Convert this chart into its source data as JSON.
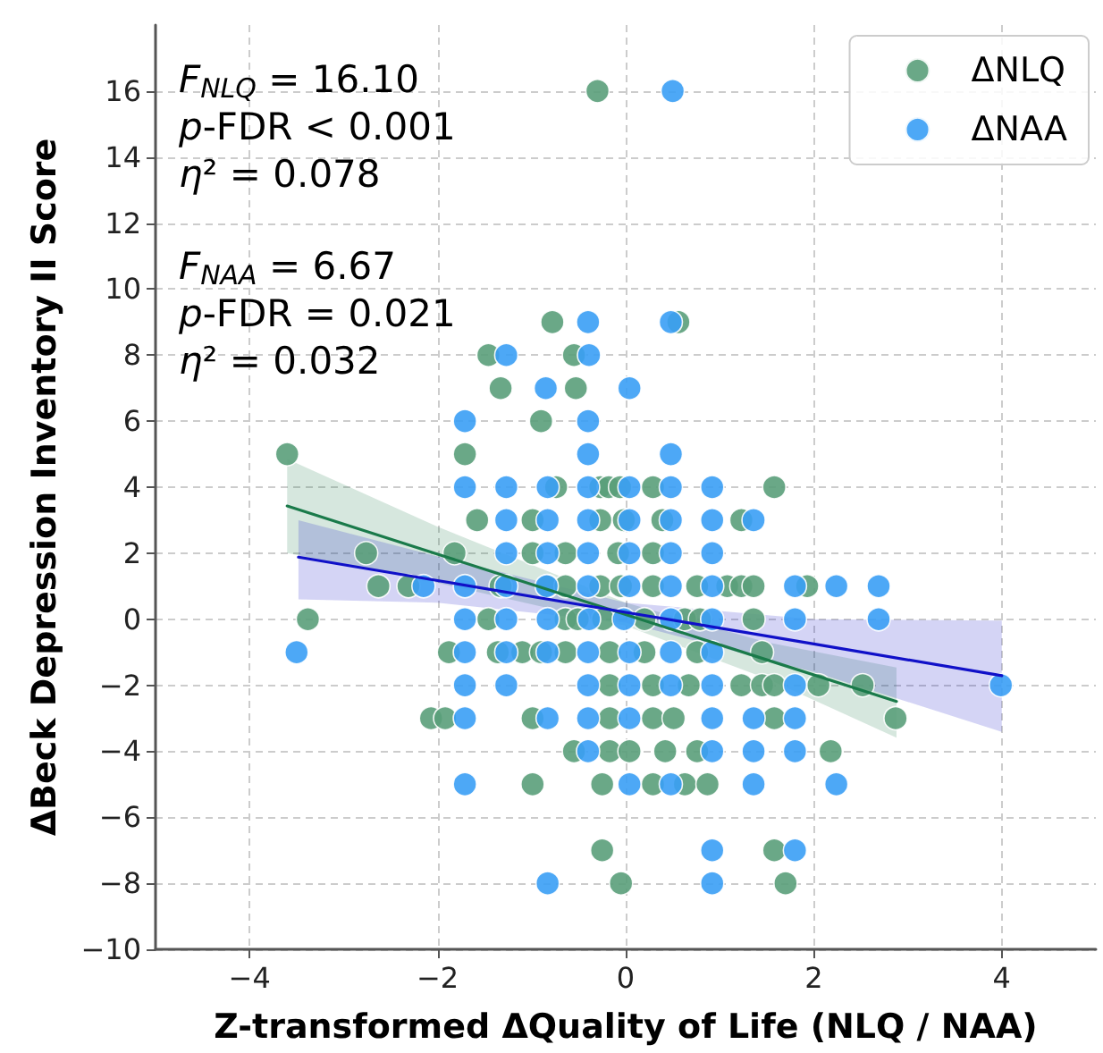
{
  "chart_data": {
    "type": "scatter",
    "xlabel": "Z-transformed ΔQuality of Life (NLQ / NAA)",
    "ylabel": "ΔBeck Depression Inventory II Score",
    "xlim": [
      -5,
      5
    ],
    "xticks": [
      -4,
      -2,
      0,
      2,
      4
    ],
    "ylim": [
      -10,
      18
    ],
    "yticks": [
      -10,
      -8,
      -6,
      -4,
      -2,
      0,
      2,
      4,
      6,
      8,
      10,
      12,
      14,
      16
    ],
    "grid": true,
    "legend": "top right",
    "annotations": [
      "F$_{NLQ}$ = 16.10",
      "p-FDR < 0.001",
      "η² = 0.078",
      "F$_{NAA}$ = 6.67",
      "p-FDR = 0.021",
      "η² = 0.032"
    ],
    "series": [
      {
        "name": "ΔNLQ",
        "color": "#5a9e7a",
        "marker": "circle",
        "x": [
          -0.3,
          -0.78,
          0.56,
          -1.46,
          -0.55,
          -1.33,
          -0.53,
          -0.9,
          -3.6,
          -1.71,
          -0.74,
          -0.27,
          -0.18,
          -0.06,
          0.29,
          1.58,
          -1.58,
          -0.99,
          -0.27,
          -0.02,
          0.39,
          1.23,
          -2.76,
          -1.82,
          -0.99,
          -0.64,
          -0.08,
          0.29,
          -2.63,
          -2.31,
          -1.33,
          -0.83,
          -0.64,
          -0.27,
          -0.05,
          0.29,
          0.76,
          1.08,
          1.23,
          1.36,
          1.93,
          -3.38,
          -1.46,
          -0.64,
          -0.51,
          -0.24,
          0.2,
          0.63,
          0.79,
          1.36,
          -1.88,
          -1.36,
          -1.1,
          -0.9,
          -0.64,
          -0.17,
          0.2,
          0.76,
          1.45,
          -0.17,
          0.29,
          0.67,
          1.23,
          1.45,
          1.58,
          2.05,
          2.52,
          -2.07,
          -1.92,
          -0.99,
          -0.17,
          0.29,
          0.51,
          1.58,
          2.87,
          -0.55,
          -0.17,
          0.04,
          0.42,
          0.76,
          2.18,
          -0.99,
          -0.25,
          0.29,
          0.63,
          0.87,
          -0.25,
          1.58,
          -0.05,
          1.7
        ],
        "values": [
          16,
          9,
          9,
          8,
          8,
          7,
          7,
          6,
          5,
          5,
          4,
          4,
          4,
          4,
          4,
          4,
          3,
          3,
          3,
          3,
          3,
          3,
          2,
          2,
          2,
          2,
          2,
          2,
          1,
          1,
          1,
          1,
          1,
          1,
          1,
          1,
          1,
          1,
          1,
          1,
          1,
          0,
          0,
          0,
          0,
          0,
          0,
          0,
          0,
          0,
          -1,
          -1,
          -1,
          -1,
          -1,
          -1,
          -1,
          -1,
          -1,
          -2,
          -2,
          -2,
          -2,
          -2,
          -2,
          -2,
          -2,
          -3,
          -3,
          -3,
          -3,
          -3,
          -3,
          -3,
          -3,
          -4,
          -4,
          -4,
          -4,
          -4,
          -4,
          -5,
          -5,
          -5,
          -5,
          -5,
          -7,
          -7,
          -8,
          -8
        ]
      },
      {
        "name": "ΔNAA",
        "color": "#3a9ff5",
        "marker": "circle",
        "x": [
          0.5,
          -0.4,
          0.48,
          -1.27,
          -0.39,
          -0.85,
          0.04,
          -1.71,
          -0.4,
          -0.4,
          0.48,
          -1.71,
          -1.27,
          -0.83,
          -0.4,
          0.04,
          0.48,
          0.92,
          -1.27,
          -0.83,
          -0.4,
          0.04,
          0.48,
          0.92,
          1.36,
          -1.27,
          -0.83,
          -0.4,
          0.04,
          0.48,
          0.92,
          -2.15,
          -1.71,
          -1.27,
          -0.84,
          -0.4,
          0.04,
          0.48,
          0.92,
          1.8,
          2.24,
          2.69,
          -1.71,
          -1.27,
          -0.83,
          -0.39,
          -0.02,
          0.48,
          0.92,
          1.8,
          2.69,
          -3.5,
          -1.71,
          -1.27,
          -0.83,
          -0.4,
          0.04,
          0.48,
          0.92,
          -1.71,
          -1.27,
          -0.4,
          0.04,
          0.48,
          0.92,
          1.8,
          3.99,
          -1.71,
          -0.83,
          -0.4,
          0.04,
          0.92,
          1.36,
          1.8,
          -0.4,
          0.92,
          1.36,
          1.8,
          -1.71,
          0.04,
          0.48,
          1.36,
          2.24,
          0.92,
          1.8,
          -0.83,
          0.92
        ],
        "values": [
          16,
          9,
          9,
          8,
          8,
          7,
          7,
          6,
          6,
          5,
          5,
          4,
          4,
          4,
          4,
          4,
          4,
          4,
          3,
          3,
          3,
          3,
          3,
          3,
          3,
          2,
          2,
          2,
          2,
          2,
          2,
          1,
          1,
          1,
          1,
          1,
          1,
          1,
          1,
          1,
          1,
          1,
          0,
          0,
          0,
          0,
          0,
          0,
          0,
          0,
          0,
          -1,
          -1,
          -1,
          -1,
          -1,
          -1,
          -1,
          -1,
          -2,
          -2,
          -2,
          -2,
          -2,
          -2,
          -2,
          -2,
          -3,
          -3,
          -3,
          -3,
          -3,
          -3,
          -3,
          -4,
          -4,
          -4,
          -4,
          -5,
          -5,
          -5,
          -5,
          -5,
          -7,
          -7,
          -8,
          -8
        ]
      },
      {
        "type": "line",
        "color": "#1a7a4a",
        "marker": "none",
        "x": [
          -3.6,
          -2,
          0,
          1.5,
          2.88
        ],
        "values": [
          3.43,
          1.97,
          0.14,
          -1.23,
          -2.49
        ],
        "lower": [
          2.0,
          1.1,
          -0.2,
          -1.8,
          -3.59
        ],
        "upper": [
          4.85,
          2.8,
          0.5,
          -0.7,
          -1.46
        ]
      },
      {
        "type": "line",
        "color": "#1010c8",
        "marker": "none",
        "x": [
          -3.48,
          -2,
          0,
          2,
          4
        ],
        "values": [
          1.88,
          1.17,
          0.21,
          -0.75,
          -1.71
        ],
        "lower": [
          0.6,
          0.5,
          -0.1,
          -1.6,
          -3.41
        ],
        "upper": [
          3.0,
          1.9,
          0.5,
          0.0,
          -0.04
        ]
      }
    ]
  }
}
